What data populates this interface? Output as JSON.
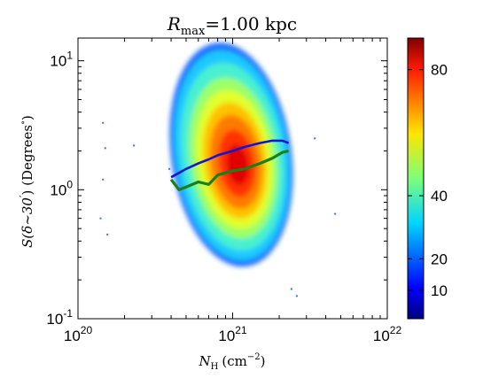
{
  "chart_data": {
    "type": "heatmap",
    "title": "R_max = 1.00 kpc",
    "title_parts": {
      "symbol": "R",
      "subscript": "max",
      "rest": "=1.00 kpc"
    },
    "xlabel": "N_H (cm^-2)",
    "xlabel_parts": {
      "symbol": "N",
      "subscript": "H",
      "unit": "(cm",
      "exp": "−2",
      "close": ")"
    },
    "ylabel": "S(δ∼30′) (Degrees°)",
    "ylabel_parts": {
      "symbol": "S(δ∼30",
      "prime": "′",
      "unit": ") (Degrees",
      "deg": "∘",
      "close": ")"
    },
    "x_scale": "log",
    "y_scale": "log",
    "xlim": [
      1e+20,
      1e+22
    ],
    "ylim": [
      0.1,
      15
    ],
    "x_ticks": [
      {
        "value": 1e+20,
        "base": "10",
        "exp": "20"
      },
      {
        "value": 1e+21,
        "base": "10",
        "exp": "21"
      },
      {
        "value": 1e+22,
        "base": "10",
        "exp": "22"
      }
    ],
    "y_ticks": [
      {
        "value": 0.1,
        "base": "10",
        "exp": "-1"
      },
      {
        "value": 1,
        "base": "10",
        "exp": "0"
      },
      {
        "value": 10,
        "base": "10",
        "exp": "1"
      }
    ],
    "colorbar": {
      "colormap": "jet",
      "range": [
        1,
        90
      ],
      "ticks": [
        "10",
        "20",
        "40",
        "80"
      ],
      "tick_values": [
        10,
        20,
        40,
        80
      ]
    },
    "density_distribution": {
      "x_extent": [
        4e+20,
        2.4e+21
      ],
      "y_extent": [
        0.25,
        14
      ],
      "peak": {
        "x": 1.1e+21,
        "y": 1.5
      },
      "peak_count": 90
    },
    "series": [
      {
        "color": "#1414d2",
        "x": [
          4e+20,
          4.5e+20,
          5e+20,
          6e+20,
          7e+20,
          8e+20,
          1e+21,
          1.2e+21,
          1.5e+21,
          1.8e+21,
          2.1e+21,
          2.3e+21
        ],
        "values": [
          1.25,
          1.35,
          1.45,
          1.6,
          1.72,
          1.85,
          2.0,
          2.15,
          2.3,
          2.4,
          2.4,
          2.3
        ]
      },
      {
        "color": "#1a7f1a",
        "x": [
          4e+20,
          4.5e+20,
          5e+20,
          6e+20,
          7e+20,
          8e+20,
          1e+21,
          1.2e+21,
          1.5e+21,
          1.8e+21,
          2.1e+21,
          2.3e+21
        ],
        "values": [
          1.2,
          1.0,
          1.05,
          1.15,
          1.1,
          1.3,
          1.4,
          1.45,
          1.6,
          1.75,
          1.95,
          2.0
        ]
      }
    ],
    "scatter_outliers": [
      {
        "x": 1.45e+20,
        "y": 3.3
      },
      {
        "x": 1.5e+20,
        "y": 2.1
      },
      {
        "x": 1.45e+20,
        "y": 1.2
      },
      {
        "x": 1.4e+20,
        "y": 0.6
      },
      {
        "x": 1.55e+20,
        "y": 0.45
      },
      {
        "x": 2.3e+20,
        "y": 2.2
      },
      {
        "x": 2.6e+21,
        "y": 0.15
      },
      {
        "x": 2.4e+21,
        "y": 0.17
      },
      {
        "x": 3.4e+21,
        "y": 2.5
      },
      {
        "x": 4.6e+21,
        "y": 0.65
      },
      {
        "x": 3.9e+20,
        "y": 1.45
      }
    ]
  }
}
